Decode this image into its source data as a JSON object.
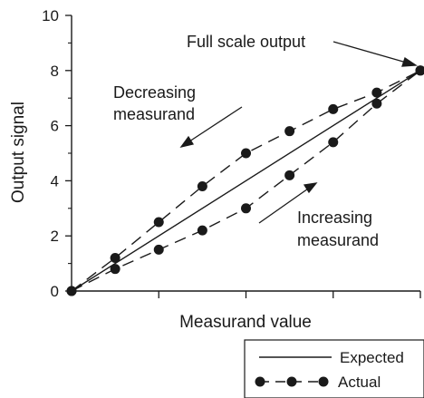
{
  "chart_data": {
    "type": "line",
    "xlabel": "Measurand value",
    "ylabel": "Output signal",
    "x_range": [
      0,
      8
    ],
    "ylim": [
      0,
      10
    ],
    "y_ticks": [
      "0",
      "2",
      "4",
      "6",
      "8",
      "10"
    ],
    "x_ticks": [
      0,
      2,
      4,
      6,
      8
    ],
    "grid": false,
    "legend_position": "bottom-right",
    "series": [
      {
        "name": "Expected",
        "style": "solid",
        "x": [
          0,
          8
        ],
        "y": [
          0,
          8
        ]
      },
      {
        "name": "Actual",
        "style": "dashed-markers",
        "segment": "decreasing",
        "x": [
          0,
          1,
          2,
          3,
          4,
          5,
          6,
          7,
          8
        ],
        "y": [
          0,
          1.2,
          2.5,
          3.8,
          5.0,
          5.8,
          6.6,
          7.2,
          8.0
        ]
      },
      {
        "name": "Actual",
        "style": "dashed-markers",
        "segment": "increasing",
        "x": [
          0,
          1,
          2,
          3,
          4,
          5,
          6,
          7,
          8
        ],
        "y": [
          0,
          0.8,
          1.5,
          2.2,
          3.0,
          4.2,
          5.4,
          6.8,
          8.0
        ]
      }
    ],
    "annotations": {
      "full_scale": "Full scale output",
      "decreasing_line1": "Decreasing",
      "decreasing_line2": "measurand",
      "increasing_line1": "Increasing",
      "increasing_line2": "measurand"
    },
    "legend": {
      "expected": "Expected",
      "actual": "Actual"
    }
  }
}
